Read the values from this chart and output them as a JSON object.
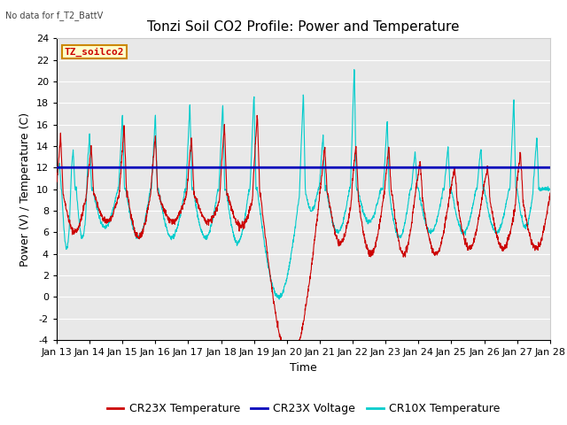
{
  "title": "Tonzi Soil CO2 Profile: Power and Temperature",
  "subtitle": "No data for f_T2_BattV",
  "xlabel": "Time",
  "ylabel": "Power (V) / Temperature (C)",
  "ylim": [
    -4,
    24
  ],
  "yticks": [
    -4,
    -2,
    0,
    2,
    4,
    6,
    8,
    10,
    12,
    14,
    16,
    18,
    20,
    22,
    24
  ],
  "xtick_labels": [
    "Jan 13",
    "Jan 14",
    "Jan 15",
    "Jan 16",
    "Jan 17",
    "Jan 18",
    "Jan 19",
    "Jan 20",
    "Jan 21",
    "Jan 22",
    "Jan 23",
    "Jan 24",
    "Jan 25",
    "Jan 26",
    "Jan 27",
    "Jan 28"
  ],
  "legend_label": "TZ_soilco2",
  "cr23x_temp_color": "#cc0000",
  "cr23x_voltage_color": "#0000bb",
  "cr10x_temp_color": "#00cccc",
  "cr23x_voltage_value": 12.0,
  "background_color": "#ffffff",
  "plot_bg_color": "#e8e8e8",
  "grid_color": "#ffffff",
  "title_fontsize": 11,
  "axis_fontsize": 9,
  "tick_fontsize": 8,
  "legend_fontsize": 9
}
